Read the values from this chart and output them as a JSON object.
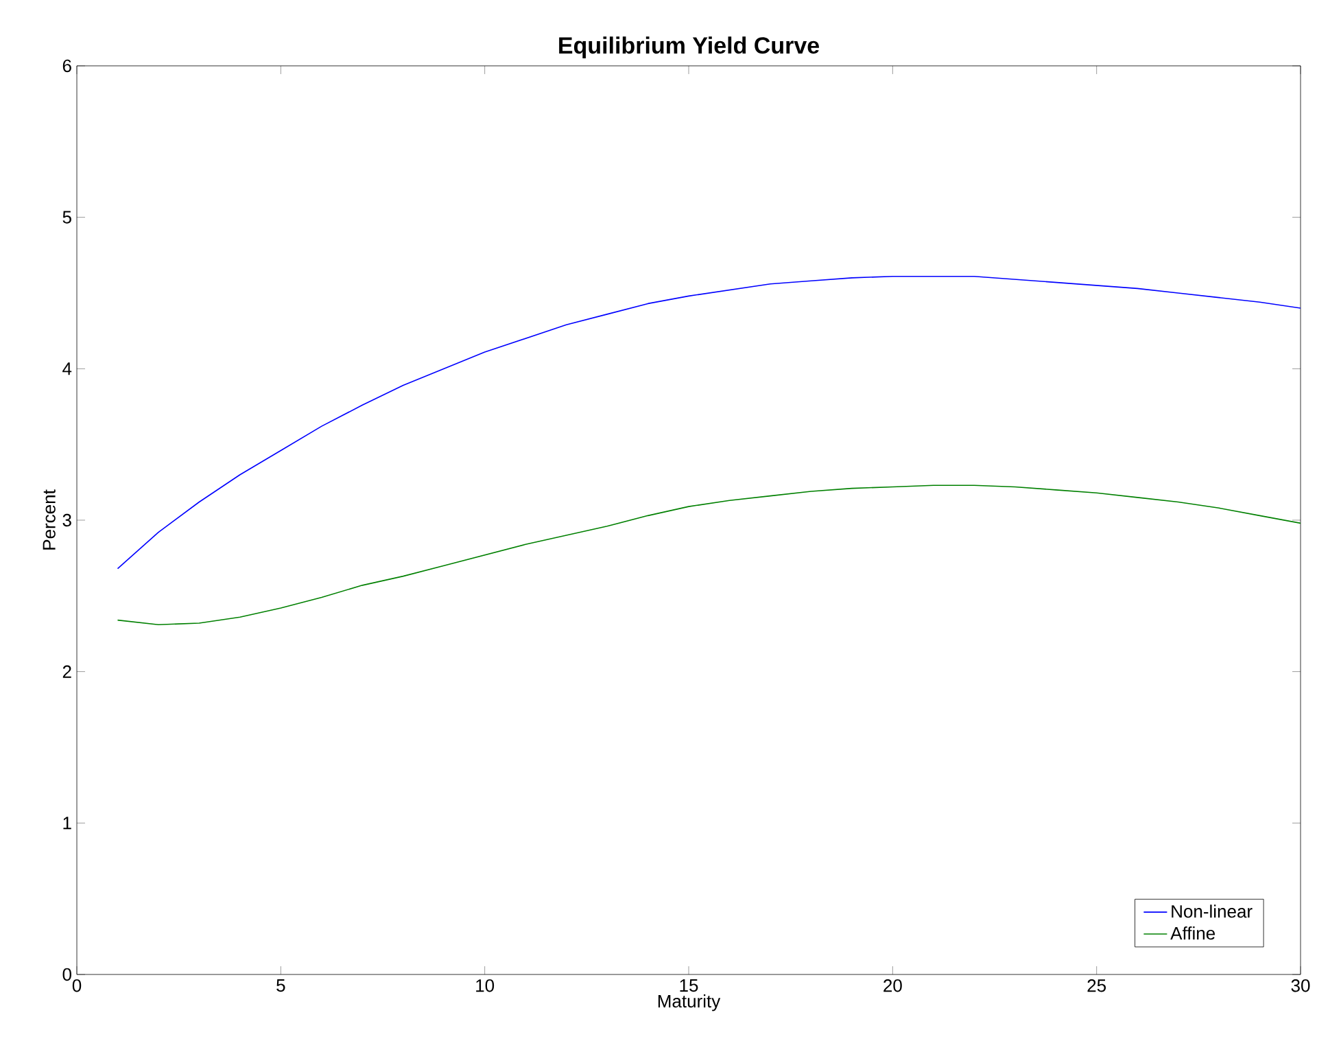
{
  "chart_data": {
    "type": "line",
    "title": "Equilibrium Yield Curve",
    "xlabel": "Maturity",
    "ylabel": "Percent",
    "x": [
      1,
      2,
      3,
      4,
      5,
      6,
      7,
      8,
      9,
      10,
      11,
      12,
      13,
      14,
      15,
      16,
      17,
      18,
      19,
      20,
      21,
      22,
      23,
      24,
      25,
      26,
      27,
      28,
      29,
      30
    ],
    "series": [
      {
        "name": "Non-linear",
        "color": "#0000ff",
        "values": [
          2.68,
          2.92,
          3.12,
          3.3,
          3.46,
          3.62,
          3.76,
          3.89,
          4.0,
          4.11,
          4.2,
          4.29,
          4.36,
          4.43,
          4.48,
          4.52,
          4.56,
          4.58,
          4.6,
          4.61,
          4.61,
          4.61,
          4.59,
          4.57,
          4.55,
          4.53,
          4.5,
          4.47,
          4.44,
          4.4
        ]
      },
      {
        "name": "Affine",
        "color": "#008000",
        "values": [
          2.34,
          2.31,
          2.32,
          2.36,
          2.42,
          2.49,
          2.57,
          2.63,
          2.7,
          2.77,
          2.84,
          2.9,
          2.96,
          3.03,
          3.09,
          3.13,
          3.16,
          3.19,
          3.21,
          3.22,
          3.23,
          3.23,
          3.22,
          3.2,
          3.18,
          3.15,
          3.12,
          3.08,
          3.03,
          2.98
        ]
      }
    ],
    "xlim": [
      0,
      30
    ],
    "xticks": [
      0,
      5,
      10,
      15,
      20,
      25,
      30
    ],
    "ylim": [
      0,
      6
    ],
    "yticks": [
      0,
      1,
      2,
      3,
      4,
      5,
      6
    ],
    "grid": false,
    "legend": "bottom right",
    "marker": "none",
    "line_style": "solid"
  }
}
